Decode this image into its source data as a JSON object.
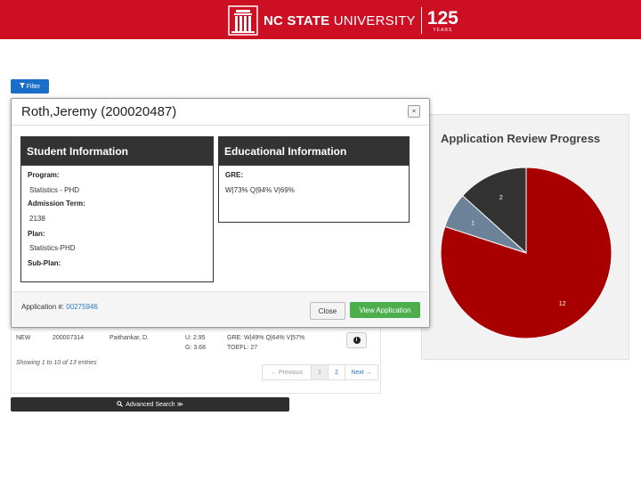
{
  "header": {
    "brand": "NC STATE",
    "brand_light": "UNIVERSITY",
    "anniversary": "125",
    "anniversary_sub": "YEARS"
  },
  "toolbar": {
    "filter_label": "Filter",
    "filter_icon": "filter-icon"
  },
  "table": {
    "row": {
      "status": "NEW",
      "id": "200007314",
      "name": "Paithankar, D.",
      "gpa_u": "U: 2.95",
      "gpa_g": "G: 3.68",
      "gre": "GRE: W|49% Q|64% V|57%",
      "toefl": "TOEFL: 27"
    },
    "showing": "Showing 1 to 10 of 13 entries",
    "pager": {
      "prev": "← Previous",
      "pages": [
        "1",
        "2"
      ],
      "next": "Next →"
    }
  },
  "advanced_search": {
    "label": "Advanced Search ≫",
    "icon": "search-icon"
  },
  "modal": {
    "title": "Roth,Jeremy (200020487)",
    "close_x": "×",
    "student_info": {
      "heading": "Student Information",
      "program_label": "Program:",
      "program_value": "Statistics - PHD",
      "term_label": "Admission Term:",
      "term_value": "2138",
      "plan_label": "Plan:",
      "plan_value": "Statistics-PHD",
      "subplan_label": "Sub-Plan:"
    },
    "edu_info": {
      "heading": "Educational Information",
      "gre_label": "GRE:",
      "gre_value": "W|73% Q|94% V|69%"
    },
    "application_prefix": "Application #:",
    "application_number": "00275946",
    "close_label": "Close",
    "view_label": "View Application"
  },
  "chart_data": {
    "type": "pie",
    "title": "Application Review Progress",
    "slices": [
      {
        "value": 12,
        "label": "12",
        "color": "#a80000"
      },
      {
        "value": 1,
        "label": "1",
        "color": "#6b8299"
      },
      {
        "value": 2,
        "label": "2",
        "color": "#333333"
      }
    ]
  }
}
